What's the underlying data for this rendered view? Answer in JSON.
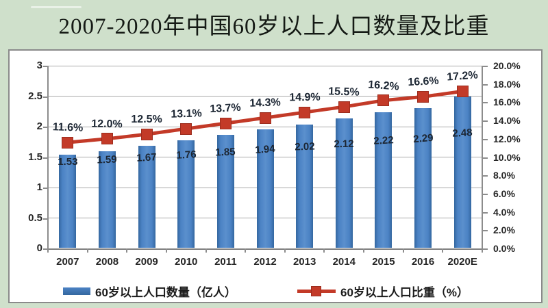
{
  "slide": {
    "title": "2007-2020年中国60岁以上人口数量及比重"
  },
  "chart_data": {
    "type": "bar",
    "subtype": "bar-line combo, dual axis",
    "categories": [
      "2007",
      "2008",
      "2009",
      "2010",
      "2011",
      "2012",
      "2013",
      "2014",
      "2015",
      "2016",
      "2020E"
    ],
    "series": [
      {
        "name": "60岁以上人口数量（亿人）",
        "type": "bar",
        "axis": "left",
        "color": "#3f76b8",
        "values": [
          1.53,
          1.59,
          1.67,
          1.76,
          1.85,
          1.94,
          2.02,
          2.12,
          2.22,
          2.29,
          2.48
        ],
        "labels": [
          "1.53",
          "1.59",
          "1.67",
          "1.76",
          "1.85",
          "1.94",
          "2.02",
          "2.12",
          "2.22",
          "2.29",
          "2.48"
        ]
      },
      {
        "name": "60岁以上人口比重（%）",
        "type": "line",
        "axis": "right",
        "color": "#c33a28",
        "values": [
          11.6,
          12.0,
          12.5,
          13.1,
          13.7,
          14.3,
          14.9,
          15.5,
          16.2,
          16.6,
          17.2
        ],
        "labels": [
          "11.6%",
          "12.0%",
          "12.5%",
          "13.1%",
          "13.7%",
          "14.3%",
          "14.9%",
          "15.5%",
          "16.2%",
          "16.6%",
          "17.2%"
        ]
      }
    ],
    "left_axis": {
      "min": 0,
      "max": 3,
      "tick_values": [
        3,
        2.5,
        2,
        1.5,
        1,
        0.5,
        0
      ],
      "tick_labels": [
        "3",
        "2.5",
        "2",
        "1.5",
        "1",
        "0.5",
        "0"
      ]
    },
    "right_axis": {
      "min": 0,
      "max": 20,
      "tick_values": [
        20,
        18,
        16,
        14,
        12,
        10,
        8,
        6,
        4,
        2,
        0
      ],
      "tick_labels": [
        "20.0%",
        "18.0%",
        "16.0%",
        "14.0%",
        "12.0%",
        "10.0%",
        "8.0%",
        "6.0%",
        "4.0%",
        "2.0%",
        "0.0%"
      ]
    },
    "grid": true,
    "legend_position": "bottom"
  }
}
